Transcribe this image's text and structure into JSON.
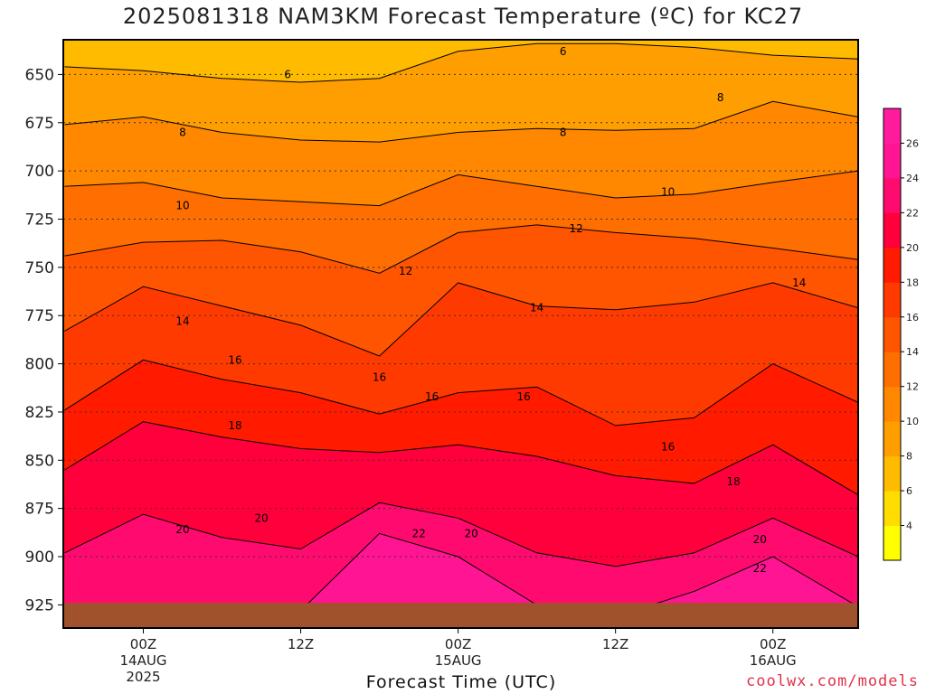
{
  "chart_data": {
    "type": "heatmap",
    "title": "2025081318 NAM3KM Forecast Temperature (ºC) for KC27",
    "xlabel": "Forecast Time (UTC)",
    "ylabel": "",
    "credit": "coolwx.com/models",
    "y_axis": {
      "ticks": [
        650,
        675,
        700,
        725,
        750,
        775,
        800,
        825,
        850,
        875,
        900,
        925
      ],
      "range": [
        632,
        937
      ],
      "inverted": true,
      "grid": "dotted"
    },
    "x_axis": {
      "range_hours": [
        -6.1,
        54.5
      ],
      "ticks": [
        {
          "hour": 0,
          "lines": [
            "00Z",
            "14AUG",
            "2025"
          ]
        },
        {
          "hour": 12,
          "lines": [
            "12Z"
          ]
        },
        {
          "hour": 24,
          "lines": [
            "00Z",
            "15AUG"
          ]
        },
        {
          "hour": 36,
          "lines": [
            "12Z"
          ]
        },
        {
          "hour": 48,
          "lines": [
            "00Z",
            "16AUG"
          ]
        }
      ]
    },
    "contour_levels": [
      6,
      8,
      10,
      12,
      14,
      16,
      18,
      20,
      22
    ],
    "isotherms": [
      {
        "level": 6,
        "x": [
          -6,
          0,
          6,
          12,
          18,
          24,
          30,
          36,
          42,
          48,
          54.5
        ],
        "y": [
          646,
          648,
          652,
          654,
          652,
          638,
          634,
          634,
          636,
          640,
          642
        ]
      },
      {
        "level": 8,
        "x": [
          -6,
          0,
          6,
          12,
          18,
          24,
          30,
          36,
          42,
          48,
          54.5
        ],
        "y": [
          676,
          672,
          680,
          684,
          685,
          680,
          678,
          679,
          678,
          664,
          672
        ]
      },
      {
        "level": 10,
        "x": [
          -6,
          0,
          6,
          12,
          18,
          24,
          30,
          36,
          42,
          48,
          54.5
        ],
        "y": [
          708,
          706,
          714,
          716,
          718,
          702,
          708,
          714,
          712,
          706,
          700
        ]
      },
      {
        "level": 12,
        "x": [
          -6,
          0,
          6,
          12,
          18,
          24,
          30,
          36,
          42,
          48,
          54.5
        ],
        "y": [
          744,
          737,
          736,
          742,
          753,
          732,
          728,
          732,
          735,
          740,
          746
        ]
      },
      {
        "level": 14,
        "x": [
          -6,
          0,
          6,
          12,
          18,
          24,
          30,
          36,
          42,
          48,
          54.5
        ],
        "y": [
          783,
          760,
          770,
          780,
          796,
          758,
          770,
          772,
          768,
          758,
          771
        ]
      },
      {
        "level": 16,
        "x": [
          -6,
          0,
          6,
          12,
          18,
          24,
          30,
          36,
          42,
          48,
          54.5
        ],
        "y": [
          824,
          798,
          808,
          815,
          826,
          815,
          812,
          832,
          828,
          800,
          820
        ]
      },
      {
        "level": 18,
        "x": [
          -6,
          0,
          6,
          12,
          18,
          24,
          30,
          36,
          42,
          48,
          54.5
        ],
        "y": [
          855,
          830,
          838,
          844,
          846,
          842,
          848,
          858,
          862,
          842,
          868
        ]
      },
      {
        "level": 20,
        "x": [
          -6,
          0,
          6,
          12,
          18,
          24,
          30,
          36,
          42,
          48,
          54.5
        ],
        "y": [
          898,
          878,
          890,
          896,
          872,
          880,
          898,
          905,
          898,
          880,
          900
        ]
      },
      {
        "level": 22,
        "x": [
          -6,
          0,
          6,
          12,
          18,
          24,
          30,
          36,
          42,
          48,
          54.5
        ],
        "y": [
          928,
          926,
          925,
          928,
          888,
          900,
          925,
          931,
          918,
          900,
          926
        ]
      }
    ],
    "contour_labels": [
      {
        "level": 6,
        "x": 11,
        "y": 650
      },
      {
        "level": 6,
        "x": 32,
        "y": 638
      },
      {
        "level": 8,
        "x": 3,
        "y": 680
      },
      {
        "level": 8,
        "x": 32,
        "y": 680
      },
      {
        "level": 8,
        "x": 44,
        "y": 662
      },
      {
        "level": 10,
        "x": 3,
        "y": 718
      },
      {
        "level": 10,
        "x": 40,
        "y": 711
      },
      {
        "level": 12,
        "x": 20,
        "y": 752
      },
      {
        "level": 12,
        "x": 33,
        "y": 730
      },
      {
        "level": 14,
        "x": 3,
        "y": 778
      },
      {
        "level": 14,
        "x": 30,
        "y": 771
      },
      {
        "level": 14,
        "x": 50,
        "y": 758
      },
      {
        "level": 16,
        "x": 7,
        "y": 798
      },
      {
        "level": 16,
        "x": 18,
        "y": 807
      },
      {
        "level": 16,
        "x": 22,
        "y": 817
      },
      {
        "level": 16,
        "x": 29,
        "y": 817
      },
      {
        "level": 16,
        "x": 40,
        "y": 843
      },
      {
        "level": 18,
        "x": 7,
        "y": 832
      },
      {
        "level": 18,
        "x": 45,
        "y": 861
      },
      {
        "level": 20,
        "x": 3,
        "y": 886
      },
      {
        "level": 20,
        "x": 9,
        "y": 880
      },
      {
        "level": 20,
        "x": 25,
        "y": 888
      },
      {
        "level": 20,
        "x": 47,
        "y": 891
      },
      {
        "level": 22,
        "x": 21,
        "y": 888
      },
      {
        "level": 22,
        "x": 47,
        "y": 906
      }
    ],
    "colorbar": {
      "ticks": [
        4,
        6,
        8,
        10,
        12,
        14,
        16,
        18,
        20,
        22,
        24,
        26
      ],
      "colors": [
        "#ffff00",
        "#ffdd00",
        "#ffbb00",
        "#ff9e00",
        "#ff8800",
        "#ff6e00",
        "#ff5400",
        "#ff3a00",
        "#ff1a00",
        "#ff003c",
        "#ff0a6e",
        "#ff1493",
        "#ff1a9e"
      ]
    },
    "ground": {
      "color": "#a0522d",
      "surface_pressure_range": [
        924,
        930
      ]
    }
  }
}
